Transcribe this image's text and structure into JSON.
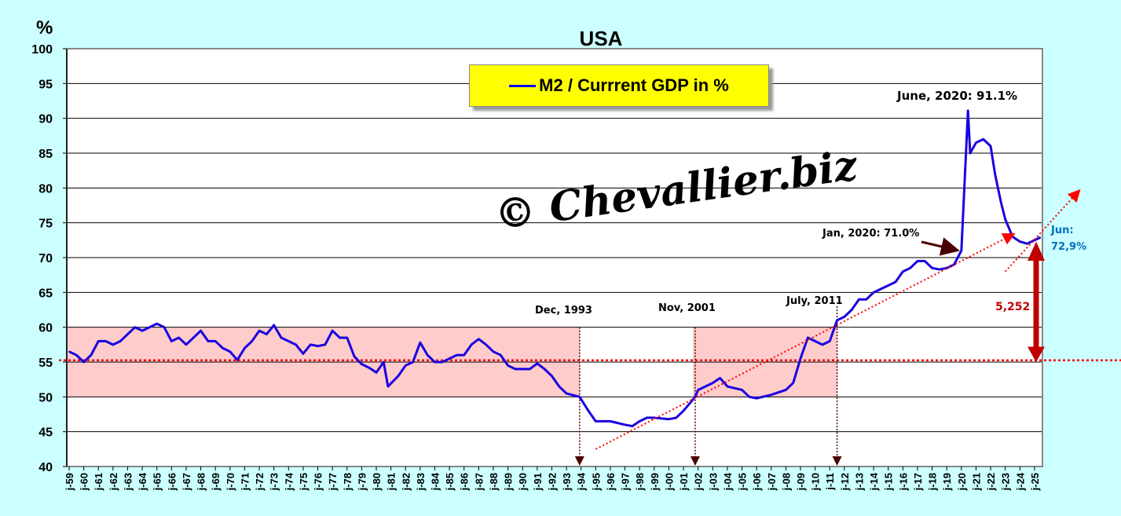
{
  "chart_data": {
    "type": "line",
    "title": "USA",
    "ylabel": "%",
    "ylim": [
      40,
      100
    ],
    "yticks": [
      40,
      45,
      50,
      55,
      60,
      65,
      70,
      75,
      80,
      85,
      90,
      95,
      100
    ],
    "xlim": [
      1959,
      2025.5
    ],
    "x_tick_labels": [
      "j-59",
      "j-60",
      "j-61",
      "j-62",
      "j-63",
      "j-64",
      "j-65",
      "j-66",
      "j-67",
      "j-68",
      "j-69",
      "j-70",
      "j-71",
      "j-72",
      "j-73",
      "j-74",
      "j-75",
      "j-76",
      "j-77",
      "j-78",
      "j-79",
      "j-80",
      "j-81",
      "j-82",
      "j-83",
      "j-84",
      "j-85",
      "j-86",
      "j-87",
      "j-88",
      "j-89",
      "j-90",
      "j-91",
      "j-92",
      "j-93",
      "j-94",
      "j-95",
      "j-96",
      "j-97",
      "j-98",
      "j-99",
      "j-00",
      "j-01",
      "j-02",
      "j-03",
      "j-04",
      "j-05",
      "j-06",
      "j-07",
      "j-08",
      "j-09",
      "j-10",
      "j-11",
      "j-12",
      "j-13",
      "j-14",
      "j-15",
      "j-16",
      "j-17",
      "j-18",
      "j-19",
      "j-20",
      "j-21",
      "j-22",
      "j-23",
      "j-24",
      "j-25"
    ],
    "grid": true,
    "legend": "top-center",
    "series": [
      {
        "name": "M2 / Currrent GDP in %",
        "color": "#0000ff",
        "x": [
          1959,
          1959.5,
          1960,
          1960.5,
          1961,
          1961.5,
          1962,
          1962.5,
          1963,
          1963.5,
          1964,
          1964.5,
          1965,
          1965.5,
          1966,
          1966.5,
          1967,
          1967.5,
          1968,
          1968.5,
          1969,
          1969.5,
          1970,
          1970.5,
          1971,
          1971.5,
          1972,
          1972.5,
          1973,
          1973.5,
          1974,
          1974.5,
          1975,
          1975.5,
          1976,
          1976.5,
          1977,
          1977.5,
          1978,
          1978.5,
          1979,
          1979.5,
          1980,
          1980.5,
          1980.8,
          1981.5,
          1982,
          1982.5,
          1983,
          1983.5,
          1984,
          1984.5,
          1985,
          1985.5,
          1986,
          1986.5,
          1987,
          1987.5,
          1988,
          1988.5,
          1989,
          1989.5,
          1990,
          1990.5,
          1991,
          1991.5,
          1992,
          1992.5,
          1993,
          1993.9,
          1994.5,
          1995,
          1996,
          1997,
          1997.5,
          1998,
          1998.5,
          1999,
          2000,
          2000.5,
          2001,
          2001.8,
          2002,
          2003,
          2003.5,
          2004,
          2005,
          2005.5,
          2006,
          2007,
          2008,
          2008.5,
          2009,
          2009.5,
          2010,
          2010.5,
          2011,
          2011.5,
          2012,
          2012.5,
          2013,
          2013.5,
          2014,
          2014.5,
          2015,
          2015.5,
          2016,
          2016.5,
          2017,
          2017.5,
          2018,
          2018.5,
          2019,
          2019.5,
          2020,
          2020.45,
          2020.6,
          2021,
          2021.5,
          2022,
          2022.3,
          2022.7,
          2023,
          2023.5,
          2024,
          2024.5,
          2025.4
        ],
        "values": [
          56.5,
          56,
          55,
          56,
          58,
          58,
          57.5,
          58,
          59,
          60,
          59.5,
          60,
          60.5,
          60,
          58,
          58.5,
          57.5,
          58.5,
          59.5,
          58,
          58,
          57,
          56.5,
          55.3,
          57,
          58,
          59.5,
          59,
          60.3,
          58.5,
          58,
          57.5,
          56.2,
          57.5,
          57.3,
          57.5,
          59.5,
          58.5,
          58.5,
          55.8,
          54.7,
          54.2,
          53.5,
          55,
          51.5,
          53,
          54.5,
          55,
          57.8,
          56,
          55,
          55,
          55.5,
          56,
          56,
          57.5,
          58.3,
          57.5,
          56.5,
          56,
          54.5,
          54,
          54,
          54,
          54.8,
          54,
          53,
          51.5,
          50.5,
          50,
          48,
          46.5,
          46.5,
          46,
          45.8,
          46.5,
          47,
          47,
          46.8,
          47,
          48,
          50,
          51,
          52,
          52.7,
          51.5,
          51,
          50,
          49.8,
          50.3,
          51,
          52,
          55.5,
          58.5,
          58,
          57.5,
          58,
          61,
          61.5,
          62.5,
          64,
          64,
          65,
          65.5,
          66,
          66.5,
          68,
          68.5,
          69.5,
          69.5,
          68.5,
          68.3,
          68.5,
          69,
          71,
          91.1,
          85,
          86.5,
          87,
          86,
          82,
          78,
          75.5,
          73,
          72.3,
          72,
          72.9
        ]
      }
    ],
    "reference_line": {
      "value": 55.25,
      "color": "#ff0000"
    },
    "bands": [
      {
        "x": [
          1959,
          1993.9
        ],
        "y": [
          50,
          60
        ],
        "color": "#ffcccc"
      },
      {
        "x": [
          2001.8,
          2011.5
        ],
        "y": [
          50,
          60
        ],
        "color": "#ffcccc"
      }
    ],
    "trend_lines": [
      {
        "x": [
          1995,
          2023.5
        ],
        "y": [
          42.5,
          73.3
        ]
      },
      {
        "x": [
          2023,
          2028
        ],
        "y": [
          68,
          79.5
        ]
      }
    ],
    "markers": [
      {
        "label": "Dec, 1993",
        "x": 1993.9,
        "y": 60
      },
      {
        "label": "Nov, 2001",
        "x": 2001.8,
        "y": 60
      },
      {
        "label": "July, 2011",
        "x": 2011.5,
        "y": 63
      }
    ],
    "annotations": {
      "peak": "June, 2020: 91.1%",
      "jan2020": "Jan, 2020: 71.0%",
      "last_label": "Jun:",
      "last_value": "72,9%",
      "gap": "5,252"
    },
    "watermark": "© Chevallier.biz"
  }
}
